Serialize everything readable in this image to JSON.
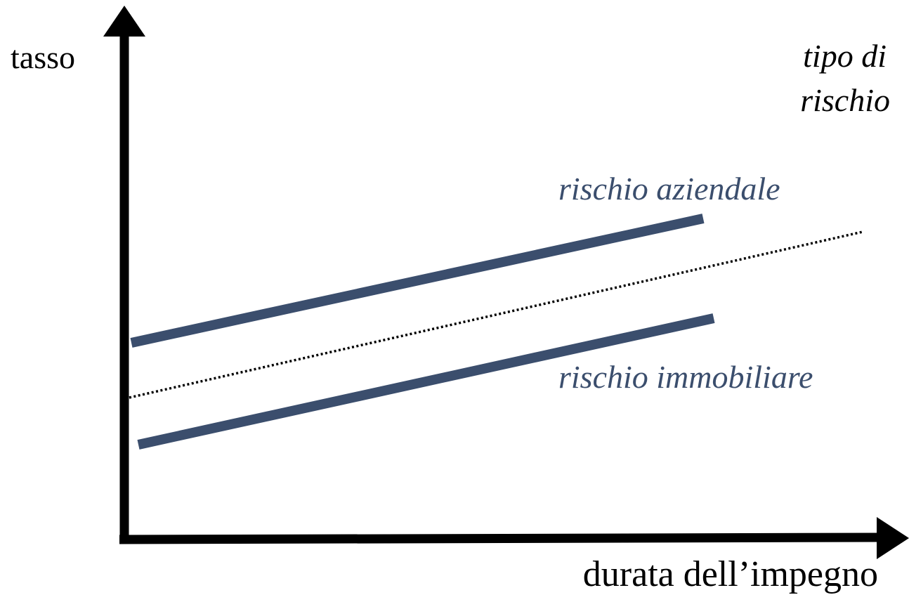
{
  "axes": {
    "y_label": "tasso",
    "x_label": "durata dell’impegno"
  },
  "legend": {
    "title_line1": "tipo di",
    "title_line2": "rischio"
  },
  "series": {
    "upper": {
      "label": "rischio aziendale",
      "style": "solid"
    },
    "middle": {
      "label": "",
      "style": "dotted"
    },
    "lower": {
      "label": "rischio immobiliare",
      "style": "solid"
    }
  },
  "colors": {
    "axis": "#000000",
    "series_line": "#3b4e6d",
    "series_text": "#3b4e6d",
    "dotted_line": "#000000",
    "background": "#ffffff"
  }
}
